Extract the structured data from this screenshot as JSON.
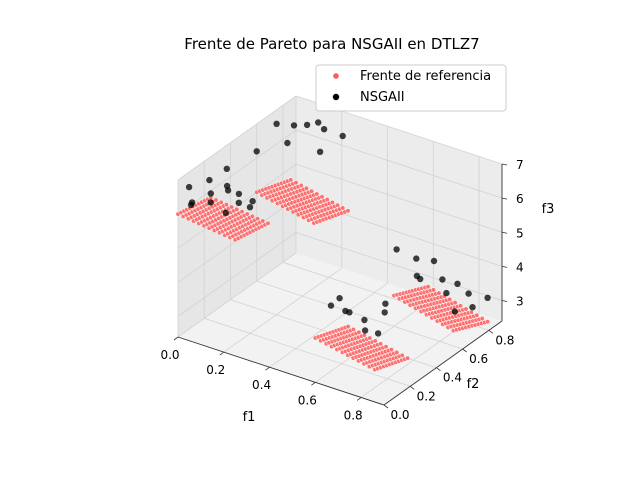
{
  "chart_data": {
    "type": "scatter",
    "projection": "3d",
    "title": "Frente de Pareto para NSGAII en DTLZ7",
    "xlabel": "f1",
    "ylabel": "f2",
    "zlabel": "f3",
    "xlim": [
      0.0,
      0.9
    ],
    "ylim": [
      0.0,
      0.9
    ],
    "zlim": [
      2.4,
      7.0
    ],
    "xticks": [
      "0.0",
      "0.2",
      "0.4",
      "0.6",
      "0.8"
    ],
    "yticks": [
      "0.0",
      "0.2",
      "0.4",
      "0.6",
      "0.8"
    ],
    "zticks": [
      "3",
      "4",
      "5",
      "6",
      "7"
    ],
    "grid": true,
    "legend_position": "top-right",
    "series": [
      {
        "name": "Frente de referencia",
        "color": "#ff5a5a",
        "marker": "small-dot",
        "description": "four disconnected regions of the DTLZ7 reference front",
        "regions": [
          {
            "f1_range": [
              0.0,
              0.25
            ],
            "f2_range": [
              0.0,
              0.25
            ],
            "f3_range": [
              5.6,
              6.0
            ]
          },
          {
            "f1_range": [
              0.0,
              0.25
            ],
            "f2_range": [
              0.6,
              0.86
            ],
            "f3_range": [
              4.3,
              5.0
            ]
          },
          {
            "f1_range": [
              0.6,
              0.86
            ],
            "f2_range": [
              0.0,
              0.25
            ],
            "f3_range": [
              3.0,
              3.7
            ]
          },
          {
            "f1_range": [
              0.6,
              0.86
            ],
            "f2_range": [
              0.6,
              0.86
            ],
            "f3_range": [
              2.4,
              3.3
            ]
          }
        ]
      },
      {
        "name": "NSGAII",
        "color": "#000000",
        "marker": "dot",
        "points": [
          [
            0.02,
            0.05,
            6.7
          ],
          [
            0.05,
            0.02,
            6.4
          ],
          [
            0.08,
            0.1,
            6.9
          ],
          [
            0.12,
            0.04,
            6.5
          ],
          [
            0.15,
            0.12,
            6.7
          ],
          [
            0.18,
            0.05,
            6.3
          ],
          [
            0.22,
            0.08,
            6.6
          ],
          [
            0.04,
            0.18,
            6.2
          ],
          [
            0.1,
            0.2,
            6.5
          ],
          [
            0.2,
            0.2,
            6.1
          ],
          [
            0.24,
            0.15,
            6.5
          ],
          [
            0.07,
            0.25,
            6.8
          ],
          [
            0.14,
            0.22,
            6.3
          ],
          [
            0.0,
            0.1,
            6.0
          ],
          [
            0.03,
            0.7,
            6.8
          ],
          [
            0.06,
            0.78,
            6.6
          ],
          [
            0.1,
            0.66,
            6.5
          ],
          [
            0.14,
            0.74,
            6.9
          ],
          [
            0.18,
            0.8,
            6.7
          ],
          [
            0.22,
            0.7,
            6.4
          ],
          [
            0.25,
            0.82,
            6.6
          ],
          [
            0.0,
            0.6,
            6.2
          ],
          [
            0.12,
            0.86,
            6.6
          ],
          [
            0.64,
            0.05,
            4.6
          ],
          [
            0.68,
            0.12,
            4.3
          ],
          [
            0.72,
            0.02,
            4.7
          ],
          [
            0.76,
            0.1,
            4.0
          ],
          [
            0.8,
            0.18,
            4.4
          ],
          [
            0.84,
            0.06,
            4.2
          ],
          [
            0.7,
            0.2,
            3.9
          ],
          [
            0.78,
            0.22,
            4.5
          ],
          [
            0.62,
            0.15,
            4.5
          ],
          [
            0.6,
            0.62,
            4.6
          ],
          [
            0.64,
            0.7,
            4.2
          ],
          [
            0.68,
            0.66,
            3.8
          ],
          [
            0.72,
            0.76,
            3.6
          ],
          [
            0.76,
            0.72,
            3.4
          ],
          [
            0.8,
            0.82,
            3.2
          ],
          [
            0.84,
            0.78,
            3.0
          ],
          [
            0.86,
            0.86,
            3.1
          ],
          [
            0.66,
            0.8,
            3.9
          ],
          [
            0.74,
            0.84,
            3.3
          ],
          [
            0.82,
            0.68,
            3.1
          ],
          [
            0.7,
            0.6,
            4.1
          ]
        ]
      }
    ]
  }
}
